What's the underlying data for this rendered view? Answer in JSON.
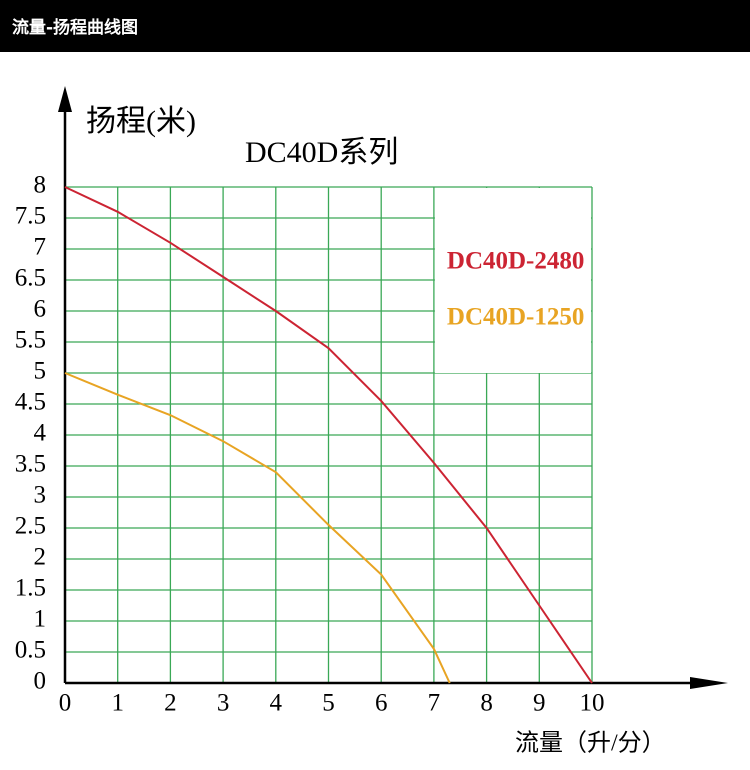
{
  "header": {
    "title": "流量-扬程曲线图"
  },
  "chart_data": {
    "type": "line",
    "title": "DC40D系列",
    "y_label": "扬程(米)",
    "x_label": "流量（升/分）",
    "xlim": [
      0,
      10
    ],
    "xticks": [
      0,
      1,
      2,
      3,
      4,
      5,
      6,
      7,
      8,
      9,
      10
    ],
    "ylim": [
      0,
      8
    ],
    "yticks": [
      0,
      0.5,
      1,
      1.5,
      2,
      2.5,
      3,
      3.5,
      4,
      4.5,
      5,
      5.5,
      6,
      6.5,
      7,
      7.5,
      8
    ],
    "grid": true,
    "grid_color": "#3aa856",
    "series": [
      {
        "name": "DC40D-2480",
        "color": "#cc2433",
        "x": [
          0,
          1,
          2,
          3,
          4,
          5,
          6,
          7,
          8,
          9,
          10
        ],
        "values": [
          8,
          7.6,
          7.1,
          6.55,
          6.0,
          5.4,
          4.55,
          3.55,
          2.5,
          1.25,
          0
        ]
      },
      {
        "name": "DC40D-1250",
        "color": "#e8a423",
        "x": [
          0,
          1,
          2,
          3,
          4,
          5,
          6,
          7,
          7.3
        ],
        "values": [
          5,
          4.65,
          4.32,
          3.9,
          3.4,
          2.55,
          1.75,
          0.55,
          0
        ]
      }
    ]
  }
}
